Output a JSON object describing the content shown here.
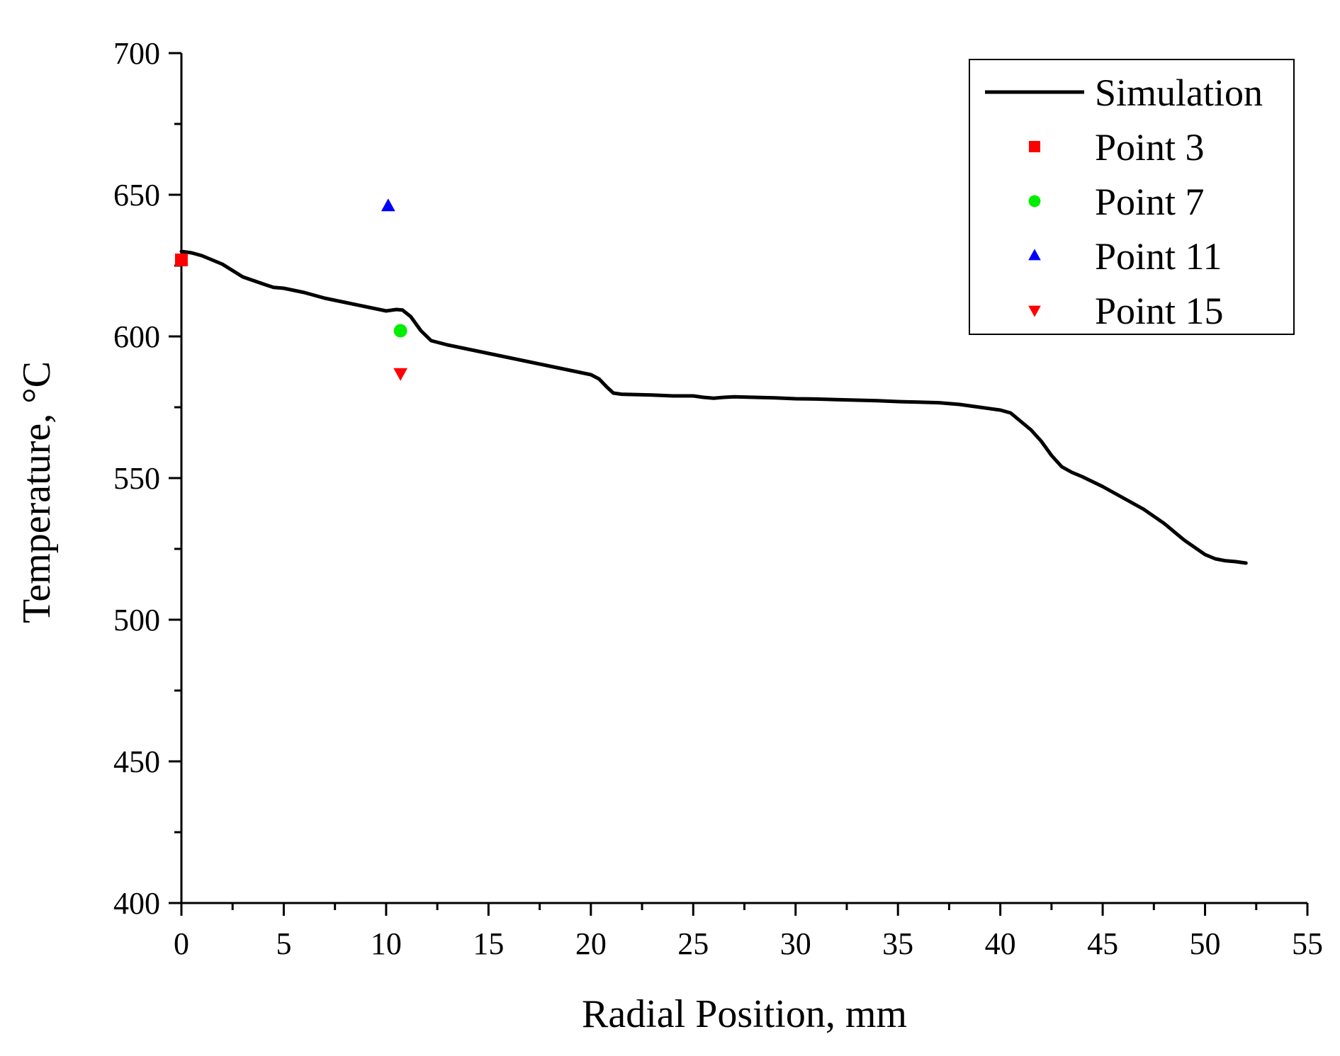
{
  "chart_data": {
    "type": "line",
    "title": "",
    "xlabel": "Radial Position, mm",
    "ylabel": "Temperature, °C",
    "xlim": [
      0,
      55
    ],
    "ylim": [
      400,
      700
    ],
    "x_ticks": [
      0,
      5,
      10,
      15,
      20,
      25,
      30,
      35,
      40,
      45,
      50,
      55
    ],
    "y_ticks": [
      400,
      450,
      500,
      550,
      600,
      650,
      700
    ],
    "x_tick_labels": [
      "0",
      "5",
      "10",
      "15",
      "20",
      "25",
      "30",
      "35",
      "40",
      "45",
      "50",
      "55"
    ],
    "y_tick_labels": [
      "400",
      "450",
      "500",
      "550",
      "600",
      "650",
      "700"
    ],
    "legend_position": "top-right",
    "series": [
      {
        "name": "Simulation",
        "kind": "line",
        "color": "#000000",
        "x": [
          0,
          0.5,
          1,
          2,
          3,
          4,
          4.5,
          5,
          6,
          7,
          8,
          9,
          10,
          10.5,
          10.8,
          11.2,
          11.7,
          12.2,
          13,
          14,
          15,
          16,
          17,
          18,
          19,
          20,
          20.4,
          20.8,
          21.1,
          21.5,
          22,
          23,
          24,
          25,
          25.5,
          26,
          26.5,
          27,
          28,
          29,
          30,
          31,
          32,
          33,
          34,
          35,
          36,
          37,
          38,
          39,
          40,
          40.5,
          41,
          41.5,
          42,
          42.5,
          43,
          43.5,
          44,
          45,
          46,
          47,
          48,
          49,
          50,
          50.5,
          51,
          51.5,
          52
        ],
        "y": [
          630,
          629.5,
          628.5,
          625.5,
          621,
          618.5,
          617.3,
          617,
          615.5,
          613.5,
          612,
          610.5,
          609,
          609.5,
          609.3,
          607,
          602,
          598.5,
          597,
          595.5,
          594,
          592.5,
          591,
          589.5,
          588,
          586.5,
          585,
          582,
          580,
          579.6,
          579.5,
          579.3,
          579,
          579,
          578.5,
          578.2,
          578.5,
          578.7,
          578.5,
          578.3,
          578,
          577.9,
          577.7,
          577.5,
          577.3,
          577,
          576.8,
          576.6,
          576,
          575,
          574,
          573,
          570,
          567,
          563,
          558,
          554,
          552,
          550.5,
          547,
          543,
          539,
          534,
          528,
          523,
          521.5,
          520.8,
          520.5,
          520
        ]
      },
      {
        "name": "Point 3",
        "kind": "marker",
        "marker": "square",
        "color": "#ff0000",
        "x": [
          0
        ],
        "y": [
          627
        ]
      },
      {
        "name": "Point 7",
        "kind": "marker",
        "marker": "circle",
        "color": "#00ee00",
        "x": [
          10.7
        ],
        "y": [
          602
        ]
      },
      {
        "name": "Point 11",
        "kind": "marker",
        "marker": "triangle-up",
        "color": "#0000ff",
        "x": [
          10.1
        ],
        "y": [
          646
        ]
      },
      {
        "name": "Point 15",
        "kind": "marker",
        "marker": "triangle-down",
        "color": "#ff0000",
        "x": [
          10.7
        ],
        "y": [
          587
        ]
      }
    ]
  }
}
